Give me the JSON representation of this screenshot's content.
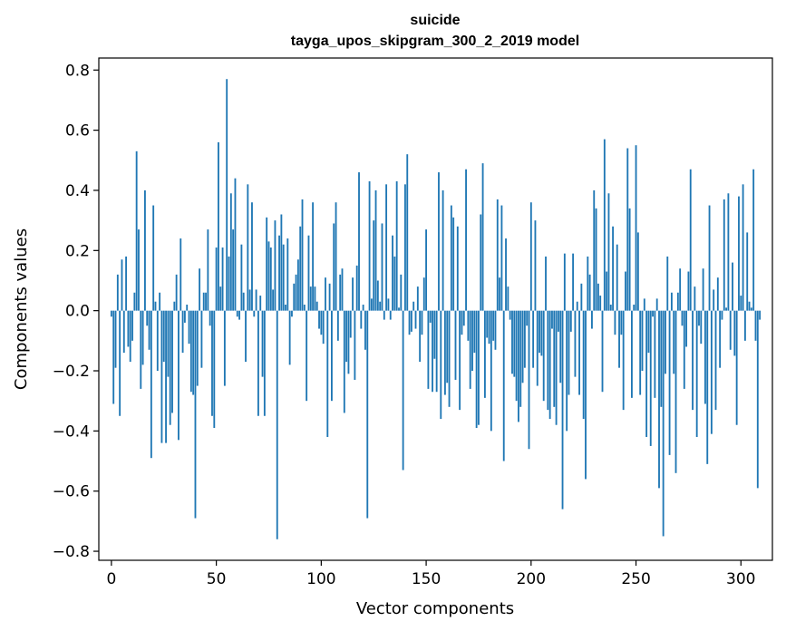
{
  "chart_data": {
    "type": "bar",
    "title": "suicide",
    "subtitle": "tayga_upos_skipgram_300_2_2019 model",
    "xlabel": "Vector components",
    "ylabel": "Components values",
    "xlim": [
      -6,
      315
    ],
    "ylim": [
      -0.83,
      0.84
    ],
    "x_ticks": [
      0,
      50,
      100,
      150,
      200,
      250,
      300
    ],
    "x_tick_labels": [
      "0",
      "50",
      "100",
      "150",
      "200",
      "250",
      "300"
    ],
    "y_ticks": [
      -0.8,
      -0.6,
      -0.4,
      -0.2,
      0.0,
      0.2,
      0.4,
      0.6,
      0.8
    ],
    "y_tick_labels": [
      "−0.8",
      "−0.6",
      "−0.4",
      "−0.2",
      "0.0",
      "0.2",
      "0.4",
      "0.6",
      "0.8"
    ],
    "bar_color": "#1f77b4",
    "values": [
      -0.02,
      -0.31,
      -0.19,
      0.12,
      -0.35,
      0.17,
      -0.14,
      0.18,
      -0.12,
      -0.17,
      -0.1,
      0.06,
      0.53,
      0.27,
      -0.26,
      -0.18,
      0.4,
      -0.05,
      -0.13,
      -0.49,
      0.35,
      0.03,
      -0.2,
      0.06,
      -0.44,
      -0.17,
      -0.44,
      -0.22,
      -0.38,
      -0.34,
      0.03,
      0.12,
      -0.43,
      0.24,
      -0.14,
      -0.04,
      0.02,
      -0.11,
      -0.27,
      -0.28,
      -0.69,
      -0.25,
      0.14,
      -0.19,
      0.06,
      0.06,
      0.27,
      -0.05,
      -0.35,
      -0.39,
      0.21,
      0.56,
      0.08,
      0.21,
      -0.25,
      0.77,
      0.18,
      0.39,
      0.27,
      0.44,
      -0.02,
      -0.03,
      0.22,
      0.06,
      -0.17,
      0.42,
      0.07,
      0.36,
      -0.02,
      0.07,
      -0.35,
      0.05,
      -0.22,
      -0.35,
      0.31,
      0.23,
      0.21,
      0.07,
      0.3,
      -0.76,
      0.25,
      0.32,
      0.22,
      0.02,
      0.24,
      -0.18,
      -0.02,
      0.09,
      0.12,
      0.17,
      0.28,
      0.37,
      0.02,
      -0.3,
      0.25,
      0.08,
      0.36,
      0.08,
      0.03,
      -0.06,
      -0.08,
      -0.11,
      0.11,
      -0.42,
      0.09,
      -0.3,
      0.29,
      0.36,
      -0.1,
      0.12,
      0.14,
      -0.34,
      -0.17,
      -0.21,
      -0.09,
      0.11,
      -0.23,
      0.15,
      0.46,
      -0.06,
      0.02,
      -0.13,
      -0.69,
      0.43,
      0.04,
      0.3,
      0.4,
      0.1,
      0.03,
      0.29,
      -0.03,
      0.42,
      0.04,
      -0.03,
      0.25,
      0.18,
      0.43,
      0.01,
      0.12,
      -0.53,
      0.42,
      0.52,
      -0.08,
      -0.07,
      0.03,
      -0.06,
      0.08,
      -0.17,
      -0.08,
      0.11,
      0.27,
      -0.26,
      -0.04,
      -0.27,
      -0.16,
      -0.27,
      0.46,
      -0.36,
      0.4,
      -0.28,
      -0.24,
      -0.32,
      0.35,
      0.31,
      -0.23,
      0.28,
      -0.33,
      -0.08,
      -0.05,
      0.47,
      -0.1,
      -0.26,
      -0.2,
      -0.14,
      -0.39,
      -0.38,
      0.32,
      0.49,
      -0.29,
      -0.09,
      -0.11,
      -0.4,
      -0.1,
      -0.13,
      0.37,
      0.11,
      0.35,
      -0.5,
      0.24,
      0.08,
      -0.03,
      -0.21,
      -0.22,
      -0.3,
      -0.37,
      -0.32,
      -0.24,
      -0.19,
      -0.05,
      -0.46,
      0.36,
      -0.19,
      0.3,
      -0.25,
      -0.14,
      -0.15,
      -0.3,
      0.18,
      -0.33,
      -0.36,
      -0.06,
      -0.32,
      -0.38,
      -0.07,
      -0.24,
      -0.66,
      0.19,
      -0.4,
      -0.28,
      -0.07,
      0.19,
      -0.22,
      0.03,
      -0.28,
      0.09,
      -0.36,
      -0.56,
      0.18,
      0.12,
      -0.06,
      0.4,
      0.34,
      0.09,
      0.05,
      -0.27,
      0.57,
      0.13,
      0.39,
      0.02,
      0.28,
      -0.08,
      0.22,
      -0.19,
      -0.08,
      -0.33,
      0.13,
      0.54,
      0.34,
      -0.29,
      0.02,
      0.55,
      0.26,
      -0.28,
      -0.2,
      0.04,
      -0.42,
      -0.14,
      -0.45,
      -0.02,
      -0.29,
      0.04,
      -0.59,
      -0.32,
      -0.75,
      -0.21,
      0.18,
      -0.48,
      0.06,
      -0.21,
      -0.54,
      0.06,
      0.14,
      -0.05,
      -0.26,
      -0.12,
      0.13,
      0.47,
      -0.33,
      0.08,
      -0.42,
      -0.05,
      -0.11,
      0.14,
      -0.31,
      -0.51,
      0.35,
      -0.41,
      0.07,
      -0.33,
      0.11,
      -0.19,
      -0.03,
      0.37,
      0.01,
      0.39,
      -0.13,
      0.16,
      -0.15,
      -0.38,
      0.38,
      0.05,
      0.42,
      -0.1,
      0.26,
      0.03,
      0.01,
      0.47,
      -0.1,
      -0.59,
      -0.03
    ]
  }
}
